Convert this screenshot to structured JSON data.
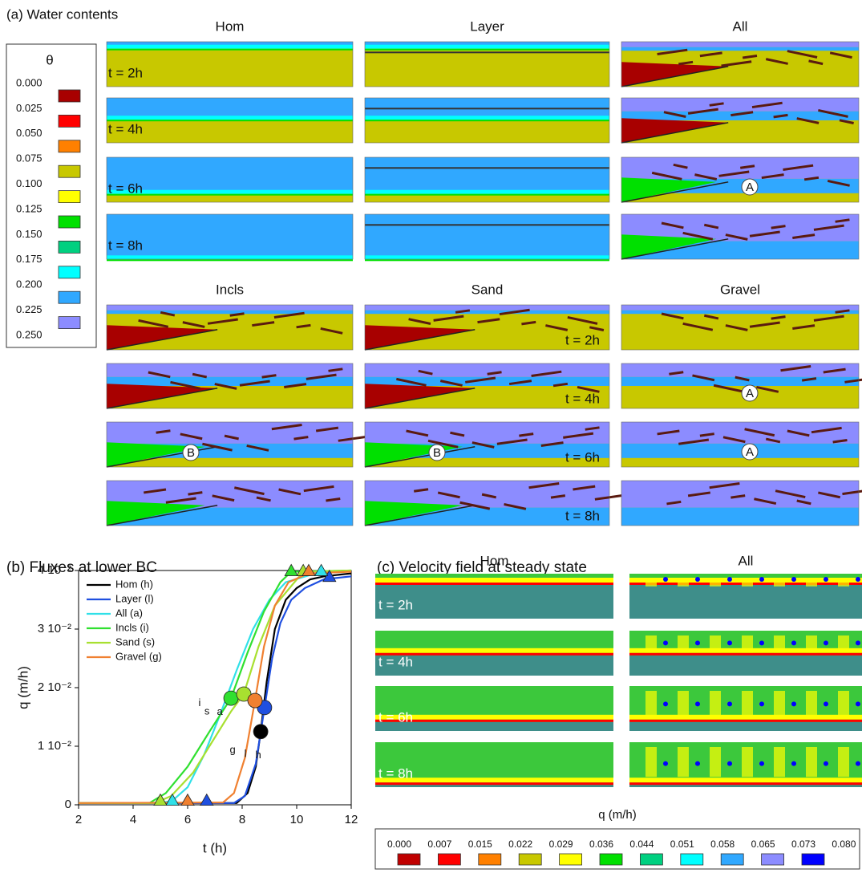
{
  "panel_a": {
    "title": "(a) Water contents",
    "legend": {
      "title": "θ",
      "labels": [
        "0.000",
        "0.025",
        "0.050",
        "0.075",
        "0.100",
        "0.125",
        "0.150",
        "0.175",
        "0.200",
        "0.225",
        "0.250"
      ],
      "colors": [
        "#a80000",
        "#ff0000",
        "#ff8000",
        "#c8c800",
        "#ffff00",
        "#00e000",
        "#00d080",
        "#00ffff",
        "#30a8ff",
        "#8c8cff"
      ]
    },
    "columns_top": [
      "Hom",
      "Layer",
      "All"
    ],
    "columns_bottom": [
      "Incls",
      "Sand",
      "Gravel"
    ],
    "times_top": [
      "t = 2h",
      "t = 4h",
      "t = 6h",
      "t = 8h"
    ],
    "times_bottom": [
      "t = 2h",
      "t = 4h",
      "t = 6h",
      "t = 8h"
    ],
    "annotations": [
      "A",
      "A",
      "B",
      "B",
      "A"
    ]
  },
  "chart_data": {
    "type": "line",
    "title": "(b) Fluxes at lower BC",
    "x_label": "t (h)",
    "y_label": "q (m/h)",
    "xlim": [
      2,
      12
    ],
    "xticks": [
      2,
      4,
      6,
      8,
      10,
      12
    ],
    "ylim": [
      0,
      0.04
    ],
    "yticks": [
      {
        "value": 0,
        "label": "0"
      },
      {
        "value": 0.01,
        "label": "1 10⁻²"
      },
      {
        "value": 0.02,
        "label": "2 10⁻²"
      },
      {
        "value": 0.03,
        "label": "3 10⁻²"
      },
      {
        "value": 0.04,
        "label": "4 10⁻²"
      }
    ],
    "legend": "upper left",
    "series": [
      {
        "name": "Hom (h)",
        "color": "#000000",
        "x": [
          2,
          7.8,
          8.2,
          8.5,
          8.68,
          8.9,
          9.2,
          9.6,
          10,
          10.5,
          11,
          12
        ],
        "values": [
          0.0003,
          0.0003,
          0.002,
          0.0065,
          0.0125,
          0.021,
          0.03,
          0.035,
          0.037,
          0.0385,
          0.039,
          0.0395
        ],
        "circle": [
          8.68,
          0.0125
        ]
      },
      {
        "name": "Layer (l)",
        "color": "#1f4fe0",
        "x": [
          2,
          7.7,
          8.1,
          8.5,
          8.82,
          9.1,
          9.4,
          9.8,
          10.3,
          11,
          12
        ],
        "values": [
          0.0003,
          0.0003,
          0.0015,
          0.007,
          0.0166,
          0.025,
          0.031,
          0.035,
          0.037,
          0.0385,
          0.039
        ],
        "circle": [
          8.82,
          0.0166
        ],
        "start": [
          6.7,
          0.0006
        ],
        "end": [
          11.2,
          0.0388
        ]
      },
      {
        "name": "All (a)",
        "color": "#30e0e8",
        "x": [
          2,
          5.0,
          5.44,
          6,
          6.6,
          7.2,
          7.8,
          8.4,
          9,
          9.6,
          10.9,
          12
        ],
        "values": [
          0.0003,
          0.0003,
          0.0007,
          0.003,
          0.0085,
          0.0155,
          0.023,
          0.03,
          0.035,
          0.038,
          0.0398,
          0.04
        ],
        "start": [
          5.44,
          0.0006
        ],
        "end": [
          10.9,
          0.0398
        ]
      },
      {
        "name": "Incls (i)",
        "color": "#30e030",
        "x": [
          2,
          4.6,
          5.2,
          6,
          6.8,
          7.59,
          8.2,
          8.8,
          9.4,
          9.8,
          12
        ],
        "values": [
          0.0003,
          0.0003,
          0.002,
          0.0065,
          0.0125,
          0.0182,
          0.026,
          0.033,
          0.038,
          0.0398,
          0.04
        ],
        "circle": [
          7.59,
          0.0182
        ],
        "end": [
          9.8,
          0.0398
        ]
      },
      {
        "name": "Sand (s)",
        "color": "#a8e030",
        "x": [
          2,
          4.8,
          5.4,
          6.2,
          7,
          7.6,
          8.06,
          8.6,
          9.2,
          10.24,
          12
        ],
        "values": [
          0.0003,
          0.0003,
          0.0015,
          0.0055,
          0.0115,
          0.016,
          0.0189,
          0.027,
          0.034,
          0.0398,
          0.04
        ],
        "circle": [
          8.06,
          0.0189
        ],
        "start": [
          5.0,
          0.0006
        ],
        "end": [
          10.24,
          0.0398
        ]
      },
      {
        "name": "Gravel (g)",
        "color": "#f08030",
        "x": [
          2,
          7.3,
          7.7,
          8.1,
          8.47,
          8.8,
          9.2,
          9.7,
          10.44,
          12
        ],
        "values": [
          0.0003,
          0.0004,
          0.002,
          0.008,
          0.0178,
          0.027,
          0.034,
          0.038,
          0.0395,
          0.0398
        ],
        "circle": [
          8.47,
          0.0178
        ],
        "start": [
          6.0,
          0.0006
        ],
        "end": [
          10.44,
          0.0398
        ]
      }
    ],
    "annotations": [
      {
        "text": "i",
        "x": 6.44,
        "y": 0.0173
      },
      {
        "text": "s",
        "x": 6.71,
        "y": 0.0159
      },
      {
        "text": "a",
        "x": 7.18,
        "y": 0.0158
      },
      {
        "text": "g",
        "x": 7.65,
        "y": 0.0093
      },
      {
        "text": "l",
        "x": 8.12,
        "y": 0.0086
      },
      {
        "text": "h",
        "x": 8.59,
        "y": 0.0084
      }
    ]
  },
  "panel_c": {
    "title": "(c) Velocity field at steady state",
    "columns": [
      "Hom",
      "All"
    ],
    "times": [
      "t = 2h",
      "t = 4h",
      "t = 6h",
      "t = 8h"
    ],
    "colorbar": {
      "label": "q (m/h)",
      "labels": [
        "0.000",
        "0.007",
        "0.015",
        "0.022",
        "0.029",
        "0.036",
        "0.044",
        "0.051",
        "0.058",
        "0.065",
        "0.073",
        "0.080"
      ],
      "colors": [
        "#c00000",
        "#ff0000",
        "#ff8000",
        "#c8c800",
        "#ffff00",
        "#00e000",
        "#00d080",
        "#00ffff",
        "#30a8ff",
        "#8c8cff",
        "#0000ff"
      ]
    }
  }
}
